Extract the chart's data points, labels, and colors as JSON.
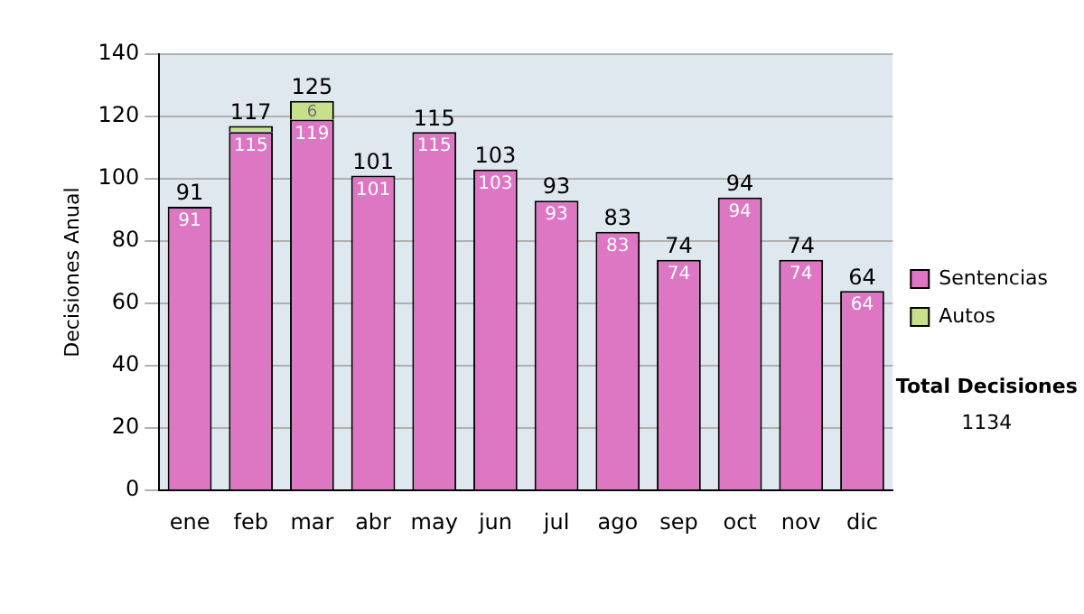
{
  "chart_data": {
    "type": "bar",
    "stacked": true,
    "ylabel": "Decisiones Anual",
    "categories": [
      "ene",
      "feb",
      "mar",
      "abr",
      "may",
      "jun",
      "jul",
      "ago",
      "sep",
      "oct",
      "nov",
      "dic"
    ],
    "series": [
      {
        "name": "Sentencias",
        "color": "#dd77c4",
        "values": [
          91,
          115,
          119,
          101,
          115,
          103,
          93,
          83,
          74,
          94,
          74,
          64
        ],
        "value_labels": [
          "91",
          "115",
          "119",
          "101",
          "115",
          "103",
          "93",
          "83",
          "74",
          "94",
          "74",
          "64"
        ]
      },
      {
        "name": "Autos",
        "color": "#c8e08a",
        "values": [
          0,
          2,
          6,
          0,
          0,
          0,
          0,
          0,
          0,
          0,
          0,
          0
        ],
        "value_labels": [
          null,
          null,
          "6",
          null,
          null,
          null,
          null,
          null,
          null,
          null,
          null,
          null
        ]
      }
    ],
    "totals": [
      "91",
      "117",
      "125",
      "101",
      "115",
      "103",
      "93",
      "83",
      "74",
      "94",
      "74",
      "64"
    ],
    "ylim": [
      0,
      140
    ],
    "yticks": [
      0,
      20,
      40,
      60,
      80,
      100,
      120,
      140
    ],
    "grid": "y",
    "legend": "right",
    "annotations": [
      "Total Decisiones",
      "1134"
    ]
  }
}
